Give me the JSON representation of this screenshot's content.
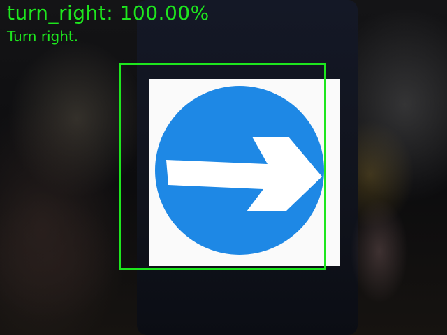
{
  "detection": {
    "label": "turn_right: 100.00%",
    "caption": "Turn right."
  },
  "sign": {
    "type": "turn-right-arrow",
    "circle_color": "#1e88e5",
    "arrow_color": "#ffffff",
    "background_color": "#fafafa"
  },
  "colors": {
    "overlay": "#1ee61e"
  }
}
